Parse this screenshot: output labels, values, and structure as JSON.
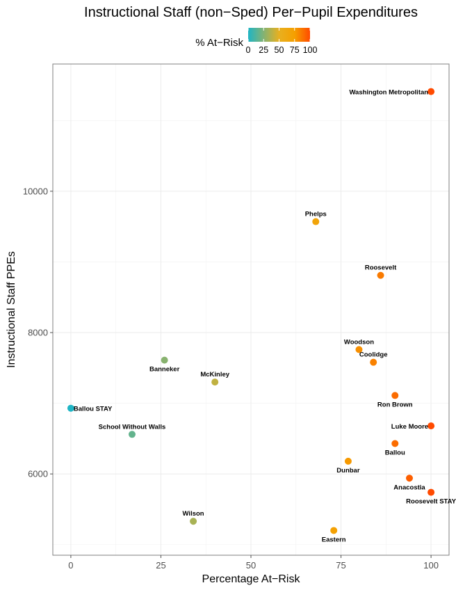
{
  "chart_data": {
    "type": "scatter",
    "title": "Instructional Staff (non−Sped) Per−Pupil Expenditures",
    "xlabel": "Percentage At−Risk",
    "ylabel": "Instructional Staff PPEs",
    "xlim": [
      -5,
      105
    ],
    "ylim": [
      4850,
      11800
    ],
    "x_ticks": [
      0,
      25,
      50,
      75,
      100
    ],
    "y_ticks": [
      6000,
      8000,
      10000
    ],
    "x_tick_labels": [
      "0",
      "25",
      "50",
      "75",
      "100"
    ],
    "y_tick_labels": [
      "6000",
      "8000",
      "10000"
    ],
    "grid": true,
    "legend": {
      "title": "% At−Risk",
      "placement": "top",
      "range": [
        0,
        100
      ],
      "ticks": [
        "0",
        "25",
        "50",
        "75",
        "100"
      ],
      "colors": [
        "#1fb5c5",
        "#e8b020",
        "#f5a000",
        "#ff4a00"
      ]
    },
    "points": [
      {
        "label": "Washington Metropolitan",
        "x": 100,
        "y": 11410,
        "label_pos": "left"
      },
      {
        "label": "Phelps",
        "x": 68,
        "y": 9570,
        "label_pos": "above"
      },
      {
        "label": "Roosevelt",
        "x": 86,
        "y": 8810,
        "label_pos": "above"
      },
      {
        "label": "Woodson",
        "x": 80,
        "y": 7760,
        "label_pos": "above"
      },
      {
        "label": "Coolidge",
        "x": 84,
        "y": 7580,
        "label_pos": "above"
      },
      {
        "label": "Banneker",
        "x": 26,
        "y": 7610,
        "label_pos": "below"
      },
      {
        "label": "McKinley",
        "x": 40,
        "y": 7300,
        "label_pos": "above"
      },
      {
        "label": "Ron Brown",
        "x": 90,
        "y": 7110,
        "label_pos": "below"
      },
      {
        "label": "Ballou STAY",
        "x": 0,
        "y": 6930,
        "label_pos": "right"
      },
      {
        "label": "Luke Moore",
        "x": 100,
        "y": 6680,
        "label_pos": "left"
      },
      {
        "label": "School Without Walls",
        "x": 17,
        "y": 6560,
        "label_pos": "above"
      },
      {
        "label": "Ballou",
        "x": 90,
        "y": 6430,
        "label_pos": "below"
      },
      {
        "label": "Dunbar",
        "x": 77,
        "y": 6180,
        "label_pos": "below"
      },
      {
        "label": "Anacostia",
        "x": 94,
        "y": 5940,
        "label_pos": "below"
      },
      {
        "label": "Roosevelt STAY",
        "x": 100,
        "y": 5740,
        "label_pos": "below"
      },
      {
        "label": "Wilson",
        "x": 34,
        "y": 5330,
        "label_pos": "above"
      },
      {
        "label": "Eastern",
        "x": 73,
        "y": 5200,
        "label_pos": "below"
      }
    ]
  }
}
